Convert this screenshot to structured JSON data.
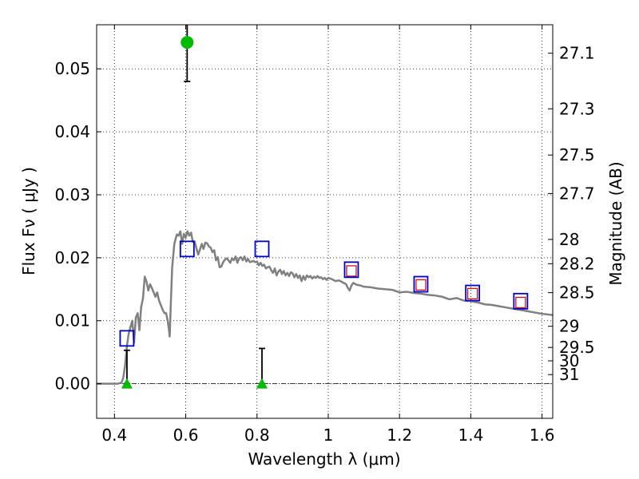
{
  "chart_data": {
    "type": "scatter",
    "xlabel": "Wavelength  λ (μm)",
    "ylabel": "Flux  Fν  ( μJy )",
    "y2label": "Magnitude (AB)",
    "xlim": [
      0.35,
      1.63
    ],
    "ylim": [
      -0.0055,
      0.057
    ],
    "x_ticks": [
      0.4,
      0.6,
      0.8,
      1.0,
      1.2,
      1.4,
      1.6
    ],
    "x_tick_labels": [
      "0.4",
      "0.6",
      "0.8",
      "1",
      "1.2",
      "1.4",
      "1.6"
    ],
    "y_ticks": [
      0.0,
      0.01,
      0.02,
      0.03,
      0.04,
      0.05
    ],
    "y_tick_labels": [
      "0.00",
      "0.01",
      "0.02",
      "0.03",
      "0.04",
      "0.05"
    ],
    "y2_ticks": [
      27.1,
      27.3,
      27.5,
      27.7,
      28,
      28.2,
      28.5,
      29,
      29.5,
      30,
      31
    ],
    "y2_tick_labels": [
      "27.1",
      "27.3",
      "27.5",
      "27.7",
      "28",
      "28.2",
      "28.5",
      "29",
      "29.5",
      "30",
      "31"
    ],
    "grid": true,
    "zero_line": true,
    "series": [
      {
        "marker": "line",
        "color": "#808080",
        "points": [
          [
            0.35,
            0.0
          ],
          [
            0.41,
            0.0
          ],
          [
            0.42,
            0.0002
          ],
          [
            0.425,
            0.001
          ],
          [
            0.43,
            0.003
          ],
          [
            0.435,
            0.006
          ],
          [
            0.44,
            0.008
          ],
          [
            0.445,
            0.009
          ],
          [
            0.45,
            0.01
          ],
          [
            0.455,
            0.0065
          ],
          [
            0.46,
            0.0105
          ],
          [
            0.465,
            0.0112
          ],
          [
            0.47,
            0.0085
          ],
          [
            0.475,
            0.0122
          ],
          [
            0.48,
            0.0135
          ],
          [
            0.485,
            0.017
          ],
          [
            0.49,
            0.0162
          ],
          [
            0.495,
            0.0148
          ],
          [
            0.5,
            0.0158
          ],
          [
            0.505,
            0.0152
          ],
          [
            0.51,
            0.0145
          ],
          [
            0.515,
            0.0138
          ],
          [
            0.52,
            0.0145
          ],
          [
            0.525,
            0.0132
          ],
          [
            0.53,
            0.0125
          ],
          [
            0.535,
            0.0118
          ],
          [
            0.54,
            0.0112
          ],
          [
            0.545,
            0.0112
          ],
          [
            0.55,
            0.0098
          ],
          [
            0.553,
            0.0085
          ],
          [
            0.555,
            0.0075
          ],
          [
            0.558,
            0.0125
          ],
          [
            0.562,
            0.0185
          ],
          [
            0.568,
            0.0222
          ],
          [
            0.575,
            0.0237
          ],
          [
            0.58,
            0.0235
          ],
          [
            0.585,
            0.0242
          ],
          [
            0.59,
            0.0222
          ],
          [
            0.595,
            0.0238
          ],
          [
            0.6,
            0.0232
          ],
          [
            0.605,
            0.0242
          ],
          [
            0.61,
            0.0235
          ],
          [
            0.615,
            0.024
          ],
          [
            0.62,
            0.0225
          ],
          [
            0.625,
            0.0226
          ],
          [
            0.63,
            0.0215
          ],
          [
            0.635,
            0.0205
          ],
          [
            0.64,
            0.0213
          ],
          [
            0.645,
            0.0222
          ],
          [
            0.65,
            0.0214
          ],
          [
            0.655,
            0.0224
          ],
          [
            0.66,
            0.0223
          ],
          [
            0.665,
            0.0218
          ],
          [
            0.67,
            0.0216
          ],
          [
            0.675,
            0.0209
          ],
          [
            0.68,
            0.0212
          ],
          [
            0.685,
            0.0196
          ],
          [
            0.69,
            0.0201
          ],
          [
            0.695,
            0.0185
          ],
          [
            0.7,
            0.0186
          ],
          [
            0.705,
            0.0193
          ],
          [
            0.71,
            0.0197
          ],
          [
            0.715,
            0.0199
          ],
          [
            0.72,
            0.0196
          ],
          [
            0.725,
            0.0192
          ],
          [
            0.73,
            0.0199
          ],
          [
            0.735,
            0.0196
          ],
          [
            0.74,
            0.0202
          ],
          [
            0.745,
            0.0192
          ],
          [
            0.75,
            0.0199
          ],
          [
            0.755,
            0.0201
          ],
          [
            0.76,
            0.0196
          ],
          [
            0.765,
            0.0202
          ],
          [
            0.77,
            0.0194
          ],
          [
            0.775,
            0.0198
          ],
          [
            0.78,
            0.0193
          ],
          [
            0.785,
            0.0194
          ],
          [
            0.79,
            0.0195
          ],
          [
            0.795,
            0.0193
          ],
          [
            0.8,
            0.0194
          ],
          [
            0.805,
            0.0188
          ],
          [
            0.81,
            0.0192
          ],
          [
            0.815,
            0.0187
          ],
          [
            0.82,
            0.0189
          ],
          [
            0.825,
            0.0183
          ],
          [
            0.83,
            0.0185
          ],
          [
            0.835,
            0.0186
          ],
          [
            0.84,
            0.018
          ],
          [
            0.845,
            0.0176
          ],
          [
            0.85,
            0.0183
          ],
          [
            0.855,
            0.0172
          ],
          [
            0.86,
            0.0178
          ],
          [
            0.865,
            0.0181
          ],
          [
            0.87,
            0.0174
          ],
          [
            0.875,
            0.0179
          ],
          [
            0.88,
            0.0172
          ],
          [
            0.885,
            0.0176
          ],
          [
            0.89,
            0.0171
          ],
          [
            0.895,
            0.0177
          ],
          [
            0.9,
            0.0175
          ],
          [
            0.905,
            0.0169
          ],
          [
            0.91,
            0.0174
          ],
          [
            0.915,
            0.0168
          ],
          [
            0.92,
            0.0172
          ],
          [
            0.925,
            0.0163
          ],
          [
            0.93,
            0.0171
          ],
          [
            0.935,
            0.0165
          ],
          [
            0.94,
            0.0172
          ],
          [
            0.945,
            0.0169
          ],
          [
            0.95,
            0.0171
          ],
          [
            0.955,
            0.0167
          ],
          [
            0.96,
            0.017
          ],
          [
            0.965,
            0.0168
          ],
          [
            0.97,
            0.0171
          ],
          [
            0.975,
            0.0168
          ],
          [
            0.98,
            0.0169
          ],
          [
            0.985,
            0.0166
          ],
          [
            0.99,
            0.0168
          ],
          [
            0.995,
            0.0165
          ],
          [
            1.0,
            0.0168
          ],
          [
            1.01,
            0.0166
          ],
          [
            1.02,
            0.0163
          ],
          [
            1.03,
            0.0164
          ],
          [
            1.04,
            0.0161
          ],
          [
            1.05,
            0.0158
          ],
          [
            1.055,
            0.0152
          ],
          [
            1.06,
            0.0148
          ],
          [
            1.065,
            0.0156
          ],
          [
            1.07,
            0.016
          ],
          [
            1.08,
            0.0157
          ],
          [
            1.09,
            0.0156
          ],
          [
            1.1,
            0.0154
          ],
          [
            1.12,
            0.0153
          ],
          [
            1.14,
            0.0151
          ],
          [
            1.16,
            0.015
          ],
          [
            1.18,
            0.0149
          ],
          [
            1.2,
            0.0145
          ],
          [
            1.22,
            0.0146
          ],
          [
            1.24,
            0.0144
          ],
          [
            1.26,
            0.0143
          ],
          [
            1.28,
            0.0141
          ],
          [
            1.3,
            0.014
          ],
          [
            1.32,
            0.0138
          ],
          [
            1.34,
            0.0134
          ],
          [
            1.36,
            0.0136
          ],
          [
            1.38,
            0.0132
          ],
          [
            1.4,
            0.0131
          ],
          [
            1.42,
            0.0129
          ],
          [
            1.44,
            0.0126
          ],
          [
            1.46,
            0.0125
          ],
          [
            1.48,
            0.0123
          ],
          [
            1.5,
            0.0121
          ],
          [
            1.52,
            0.0119
          ],
          [
            1.54,
            0.0117
          ],
          [
            1.56,
            0.0115
          ],
          [
            1.58,
            0.0113
          ],
          [
            1.6,
            0.0111
          ],
          [
            1.63,
            0.0109
          ]
        ]
      },
      {
        "marker": "square-open",
        "color": "#0000cc",
        "points": [
          [
            0.435,
            0.0072
          ],
          [
            0.604,
            0.0214
          ],
          [
            0.814,
            0.0214
          ],
          [
            1.065,
            0.0181
          ],
          [
            1.26,
            0.0158
          ],
          [
            1.405,
            0.0144
          ],
          [
            1.54,
            0.0131
          ]
        ]
      },
      {
        "marker": "square-open-small",
        "color": "#cc0000",
        "points": [
          [
            1.065,
            0.0179
          ],
          [
            1.26,
            0.0157
          ],
          [
            1.405,
            0.0143
          ],
          [
            1.54,
            0.0129
          ]
        ]
      },
      {
        "marker": "circle",
        "color": "#00bb00",
        "points": [
          [
            0.604,
            0.0542
          ]
        ],
        "errorbars": [
          [
            0.048,
            0.0575
          ]
        ]
      },
      {
        "marker": "triangle-up",
        "color": "#00bb00",
        "points": [
          [
            0.435,
            0.0
          ],
          [
            0.814,
            0.0
          ]
        ],
        "errorbars": [
          [
            0.0,
            0.0053
          ],
          [
            0.0,
            0.0056
          ]
        ]
      }
    ]
  }
}
